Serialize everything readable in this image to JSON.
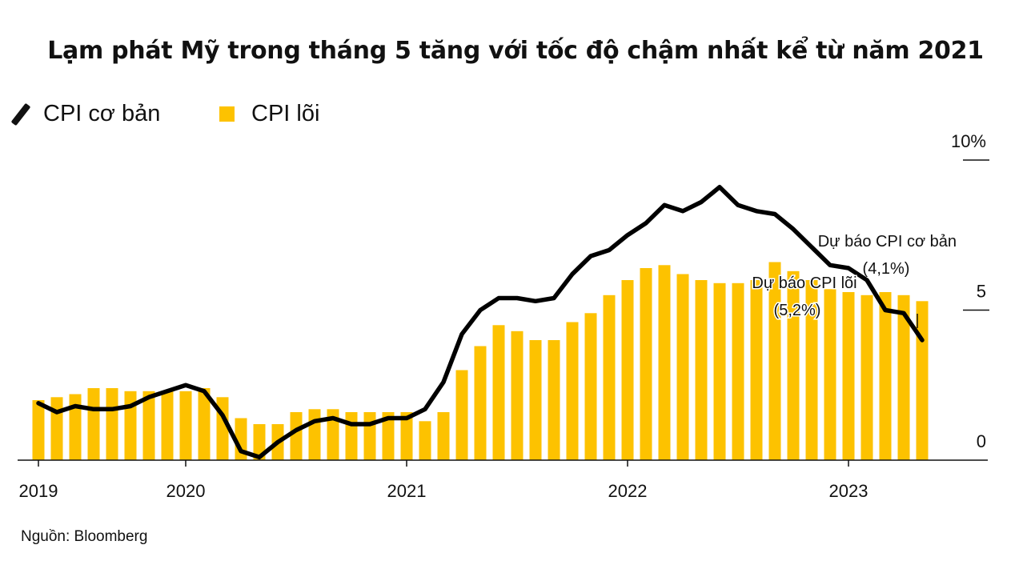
{
  "chart_data": {
    "type": "bar+line",
    "title": "Lạm phát Mỹ trong tháng 5 tăng với tốc độ chậm nhất kể từ năm 2021",
    "source": "Nguồn: Bloomberg",
    "ylim": [
      0,
      10
    ],
    "y_ticks": [
      {
        "value": 10,
        "label": "10%"
      },
      {
        "value": 5,
        "label": "5"
      },
      {
        "value": 0,
        "label": "0"
      }
    ],
    "year_ticks": [
      {
        "index": 0,
        "label": "2019"
      },
      {
        "index": 8,
        "label": "2020"
      },
      {
        "index": 20,
        "label": "2021"
      },
      {
        "index": 32,
        "label": "2022"
      },
      {
        "index": 44,
        "label": "2023"
      }
    ],
    "series": [
      {
        "name": "CPI cơ bản",
        "kind": "line",
        "color": "#000000",
        "values": [
          1.9,
          1.6,
          1.8,
          1.7,
          1.7,
          1.8,
          2.1,
          2.3,
          2.5,
          2.3,
          1.5,
          0.3,
          0.1,
          0.6,
          1.0,
          1.3,
          1.4,
          1.2,
          1.2,
          1.4,
          1.4,
          1.7,
          2.6,
          4.2,
          5.0,
          5.4,
          5.4,
          5.3,
          5.4,
          6.2,
          6.8,
          7.0,
          7.5,
          7.9,
          8.5,
          8.3,
          8.6,
          9.1,
          8.5,
          8.3,
          8.2,
          7.7,
          7.1,
          6.5,
          6.4,
          6.0,
          5.0,
          4.9,
          4.0
        ]
      },
      {
        "name": "CPI lõi",
        "kind": "bar",
        "color": "#FDC200",
        "values": [
          2.0,
          2.1,
          2.2,
          2.4,
          2.4,
          2.3,
          2.3,
          2.3,
          2.3,
          2.4,
          2.1,
          1.4,
          1.2,
          1.2,
          1.6,
          1.7,
          1.7,
          1.6,
          1.6,
          1.6,
          1.6,
          1.3,
          1.6,
          3.0,
          3.8,
          4.5,
          4.3,
          4.0,
          4.0,
          4.6,
          4.9,
          5.5,
          6.0,
          6.4,
          6.5,
          6.2,
          6.0,
          5.9,
          5.9,
          6.0,
          6.6,
          6.3,
          6.0,
          5.7,
          5.6,
          5.5,
          5.6,
          5.5,
          5.3
        ]
      }
    ],
    "annotations": [
      {
        "target": "CPI cơ bản",
        "line1": "Dự báo CPI cơ bản",
        "line2": "(4,1%)"
      },
      {
        "target": "CPI lõi",
        "line1": "Dự báo CPI lõi",
        "line2": "(5,2%)"
      }
    ]
  }
}
